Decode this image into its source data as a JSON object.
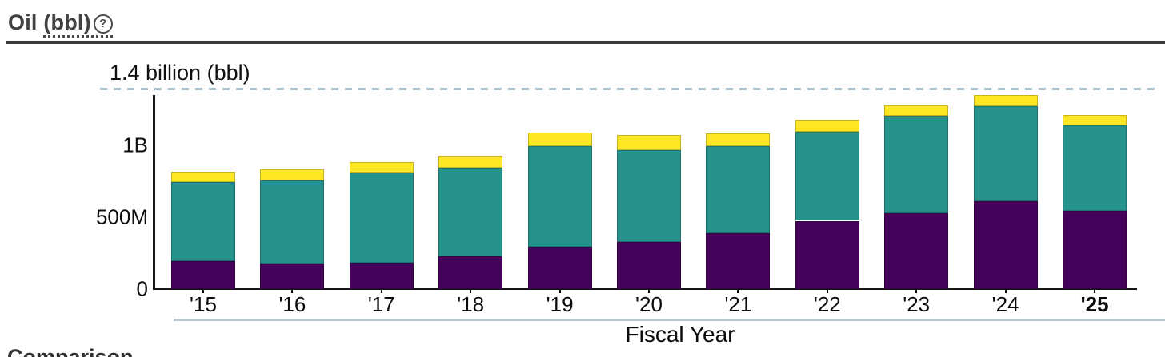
{
  "header": {
    "title_prefix": "Oil ",
    "title_unit": "(bbl)",
    "help_icon": "?"
  },
  "chart_data": {
    "type": "bar",
    "stacked": true,
    "title": "Oil (bbl)",
    "xlabel": "Fiscal Year",
    "unit": "bbl",
    "value_unit": "millions of barrels",
    "categories": [
      "'15",
      "'16",
      "'17",
      "'18",
      "'19",
      "'20",
      "'21",
      "'22",
      "'23",
      "'24",
      "'25"
    ],
    "series": [
      {
        "name": "bottom-purple",
        "color": "#45025A",
        "values": [
          195,
          180,
          182,
          230,
          295,
          330,
          390,
          475,
          530,
          610,
          545
        ]
      },
      {
        "name": "middle-teal",
        "color": "#25938C",
        "values": [
          550,
          578,
          630,
          613,
          698,
          636,
          606,
          620,
          676,
          664,
          596
        ]
      },
      {
        "name": "top-yellow",
        "color": "#FDE725",
        "values": [
          72,
          74,
          74,
          87,
          96,
          106,
          89,
          83,
          74,
          74,
          71
        ]
      }
    ],
    "y_ticks": [
      {
        "value": 0,
        "label": "0"
      },
      {
        "value": 500,
        "label": "500M"
      },
      {
        "value": 1000,
        "label": "1B"
      }
    ],
    "ylim": [
      0,
      1450
    ],
    "grid": false,
    "legend": "none",
    "reference_line": {
      "value": 1400,
      "label": "1.4 billion (bbl)",
      "style": "dashed",
      "color": "#a9c2d2"
    },
    "highlight_category": "'25"
  },
  "footer": {
    "comparison_label": "Comparison"
  }
}
